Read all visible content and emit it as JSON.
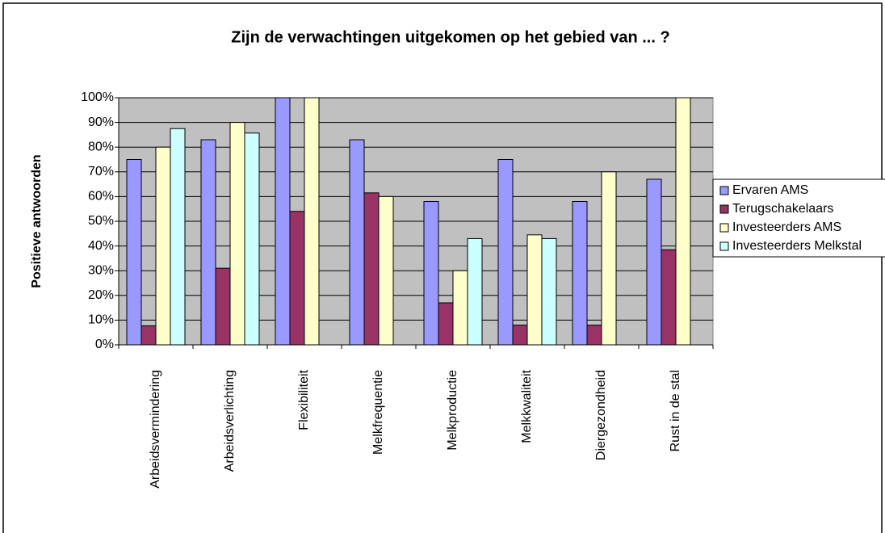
{
  "chart_data": {
    "type": "bar",
    "title": "Zijn de verwachtingen uitgekomen op het gebied van ... ?",
    "y_label": "Positieve antwoorden",
    "categories": [
      "Arbeidsvermindering",
      "Arbeidsverlichting",
      "Flexibiliteit",
      "Melkfrequentie",
      "Melkproductie",
      "Melkkwaliteit",
      "Diergezondheid",
      "Rust in de stal"
    ],
    "series": [
      {
        "name": "Ervaren AMS",
        "color": "#9999ff",
        "values": [
          75,
          83,
          100,
          83,
          58,
          75,
          58,
          67
        ]
      },
      {
        "name": "Terugschakelaars",
        "color": "#993366",
        "values": [
          7.7,
          31,
          54,
          61.5,
          17,
          8,
          8,
          38.5
        ]
      },
      {
        "name": "Investeerders AMS",
        "color": "#ffffcc",
        "values": [
          80,
          90,
          100,
          60,
          30,
          44.5,
          70,
          100
        ]
      },
      {
        "name": "Investeerders Melkstal",
        "color": "#ccffff",
        "values": [
          87.5,
          85.7,
          null,
          null,
          43,
          43,
          null,
          null
        ]
      }
    ],
    "ylim": [
      0,
      100
    ],
    "yticks": [
      {
        "value": 0,
        "label": "0%"
      },
      {
        "value": 10,
        "label": "10%"
      },
      {
        "value": 20,
        "label": "20%"
      },
      {
        "value": 30,
        "label": "30%"
      },
      {
        "value": 40,
        "label": "40%"
      },
      {
        "value": 50,
        "label": "50%"
      },
      {
        "value": 60,
        "label": "60%"
      },
      {
        "value": 70,
        "label": "70%"
      },
      {
        "value": 80,
        "label": "80%"
      },
      {
        "value": 90,
        "label": "90%"
      },
      {
        "value": 100,
        "label": "100%"
      }
    ],
    "grid": true,
    "plot_background": "#c0c0c0",
    "legend": "right"
  }
}
